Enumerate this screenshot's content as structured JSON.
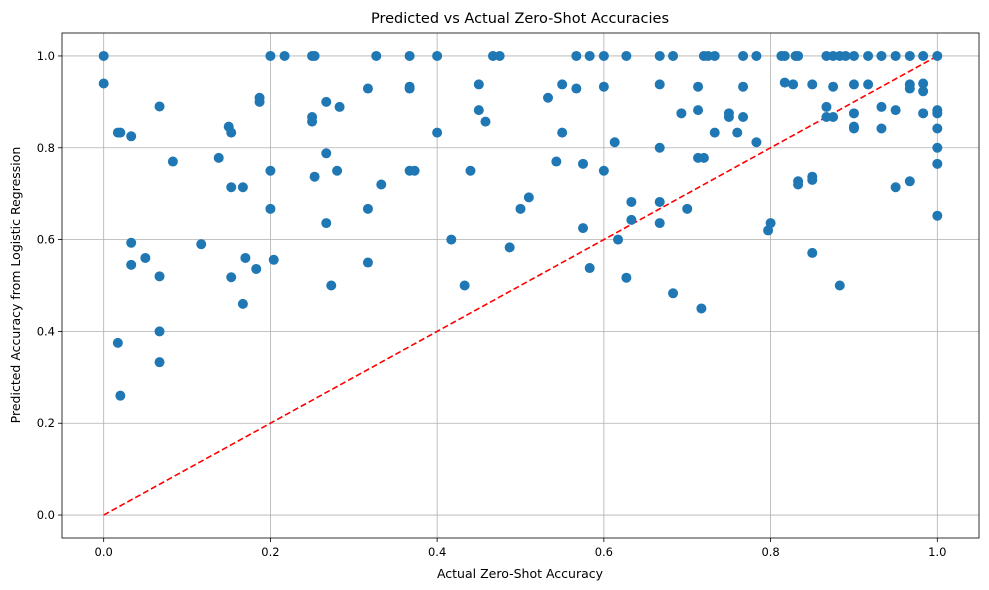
{
  "chart_data": {
    "type": "scatter",
    "title": "Predicted vs Actual Zero-Shot Accuracies",
    "xlabel": "Actual Zero-Shot Accuracy",
    "ylabel": "Predicted Accuracy from Logistic Regression",
    "xlim": [
      -0.05,
      1.05
    ],
    "ylim": [
      -0.05,
      1.05
    ],
    "xticks": [
      "0.0",
      "0.2",
      "0.4",
      "0.6",
      "0.8",
      "1.0"
    ],
    "yticks": [
      "0.0",
      "0.2",
      "0.4",
      "0.6",
      "0.8",
      "1.0"
    ],
    "grid": true,
    "point_color": "#1f77b4",
    "reference_line": {
      "from": [
        0,
        0
      ],
      "to": [
        1,
        1
      ],
      "color": "#ff0000",
      "style": "dashed"
    },
    "points": [
      [
        0.0,
        1.0
      ],
      [
        0.0,
        0.94
      ],
      [
        0.017,
        0.833
      ],
      [
        0.02,
        0.833
      ],
      [
        0.033,
        0.825
      ],
      [
        0.067,
        0.89
      ],
      [
        0.083,
        0.77
      ],
      [
        0.033,
        0.593
      ],
      [
        0.033,
        0.545
      ],
      [
        0.05,
        0.56
      ],
      [
        0.067,
        0.52
      ],
      [
        0.067,
        0.4
      ],
      [
        0.067,
        0.333
      ],
      [
        0.017,
        0.375
      ],
      [
        0.02,
        0.26
      ],
      [
        0.117,
        0.59
      ],
      [
        0.138,
        0.778
      ],
      [
        0.15,
        0.846
      ],
      [
        0.153,
        0.833
      ],
      [
        0.153,
        0.714
      ],
      [
        0.167,
        0.714
      ],
      [
        0.153,
        0.518
      ],
      [
        0.167,
        0.46
      ],
      [
        0.17,
        0.56
      ],
      [
        0.183,
        0.536
      ],
      [
        0.187,
        0.909
      ],
      [
        0.187,
        0.9
      ],
      [
        0.2,
        1.0
      ],
      [
        0.217,
        1.0
      ],
      [
        0.2,
        0.75
      ],
      [
        0.2,
        0.667
      ],
      [
        0.204,
        0.556
      ],
      [
        0.25,
        1.0
      ],
      [
        0.253,
        1.0
      ],
      [
        0.25,
        0.867
      ],
      [
        0.25,
        0.857
      ],
      [
        0.253,
        0.737
      ],
      [
        0.267,
        0.9
      ],
      [
        0.267,
        0.788
      ],
      [
        0.267,
        0.636
      ],
      [
        0.273,
        0.5
      ],
      [
        0.28,
        0.75
      ],
      [
        0.283,
        0.889
      ],
      [
        0.317,
        0.929
      ],
      [
        0.317,
        0.667
      ],
      [
        0.317,
        0.55
      ],
      [
        0.327,
        1.0
      ],
      [
        0.333,
        0.72
      ],
      [
        0.367,
        1.0
      ],
      [
        0.367,
        0.933
      ],
      [
        0.367,
        0.929
      ],
      [
        0.367,
        0.75
      ],
      [
        0.373,
        0.75
      ],
      [
        0.4,
        1.0
      ],
      [
        0.4,
        0.833
      ],
      [
        0.417,
        0.6
      ],
      [
        0.433,
        0.5
      ],
      [
        0.44,
        0.75
      ],
      [
        0.45,
        0.938
      ],
      [
        0.45,
        0.882
      ],
      [
        0.458,
        0.857
      ],
      [
        0.467,
        1.0
      ],
      [
        0.475,
        1.0
      ],
      [
        0.487,
        0.583
      ],
      [
        0.5,
        0.667
      ],
      [
        0.51,
        0.692
      ],
      [
        0.533,
        0.909
      ],
      [
        0.543,
        0.77
      ],
      [
        0.55,
        0.938
      ],
      [
        0.55,
        0.833
      ],
      [
        0.567,
        1.0
      ],
      [
        0.567,
        0.929
      ],
      [
        0.575,
        0.765
      ],
      [
        0.575,
        0.625
      ],
      [
        0.583,
        0.538
      ],
      [
        0.583,
        1.0
      ],
      [
        0.6,
        1.0
      ],
      [
        0.6,
        0.933
      ],
      [
        0.6,
        0.75
      ],
      [
        0.613,
        0.812
      ],
      [
        0.617,
        0.6
      ],
      [
        0.627,
        1.0
      ],
      [
        0.627,
        0.517
      ],
      [
        0.633,
        0.682
      ],
      [
        0.633,
        0.643
      ],
      [
        0.667,
        1.0
      ],
      [
        0.667,
        0.938
      ],
      [
        0.667,
        0.8
      ],
      [
        0.667,
        0.682
      ],
      [
        0.667,
        0.636
      ],
      [
        0.683,
        1.0
      ],
      [
        0.683,
        0.483
      ],
      [
        0.693,
        0.875
      ],
      [
        0.7,
        0.667
      ],
      [
        0.713,
        0.933
      ],
      [
        0.713,
        0.882
      ],
      [
        0.713,
        0.778
      ],
      [
        0.72,
        0.778
      ],
      [
        0.717,
        0.45
      ],
      [
        0.72,
        1.0
      ],
      [
        0.725,
        1.0
      ],
      [
        0.733,
        1.0
      ],
      [
        0.733,
        0.833
      ],
      [
        0.75,
        0.875
      ],
      [
        0.75,
        0.867
      ],
      [
        0.76,
        0.833
      ],
      [
        0.767,
        1.0
      ],
      [
        0.767,
        0.933
      ],
      [
        0.767,
        0.867
      ],
      [
        0.783,
        1.0
      ],
      [
        0.783,
        0.812
      ],
      [
        0.797,
        0.62
      ],
      [
        0.8,
        0.636
      ],
      [
        0.813,
        1.0
      ],
      [
        0.817,
        1.0
      ],
      [
        0.817,
        0.942
      ],
      [
        0.827,
        0.938
      ],
      [
        0.83,
        1.0
      ],
      [
        0.833,
        1.0
      ],
      [
        0.833,
        0.727
      ],
      [
        0.833,
        0.72
      ],
      [
        0.85,
        0.938
      ],
      [
        0.85,
        0.737
      ],
      [
        0.85,
        0.73
      ],
      [
        0.85,
        0.571
      ],
      [
        0.867,
        1.0
      ],
      [
        0.867,
        0.889
      ],
      [
        0.867,
        0.867
      ],
      [
        0.875,
        1.0
      ],
      [
        0.875,
        0.933
      ],
      [
        0.875,
        0.867
      ],
      [
        0.883,
        1.0
      ],
      [
        0.883,
        0.5
      ],
      [
        0.89,
        1.0
      ],
      [
        0.9,
        1.0
      ],
      [
        0.9,
        0.938
      ],
      [
        0.9,
        0.875
      ],
      [
        0.9,
        0.846
      ],
      [
        0.9,
        0.842
      ],
      [
        0.917,
        1.0
      ],
      [
        0.917,
        0.938
      ],
      [
        0.933,
        1.0
      ],
      [
        0.933,
        0.889
      ],
      [
        0.933,
        0.842
      ],
      [
        0.95,
        1.0
      ],
      [
        0.95,
        0.882
      ],
      [
        0.95,
        0.714
      ],
      [
        0.967,
        1.0
      ],
      [
        0.967,
        0.938
      ],
      [
        0.967,
        0.929
      ],
      [
        0.967,
        0.727
      ],
      [
        0.983,
        1.0
      ],
      [
        0.983,
        0.94
      ],
      [
        0.983,
        0.923
      ],
      [
        0.983,
        0.875
      ],
      [
        1.0,
        1.0
      ],
      [
        1.0,
        0.882
      ],
      [
        1.0,
        0.875
      ],
      [
        1.0,
        0.842
      ],
      [
        1.0,
        0.8
      ],
      [
        1.0,
        0.765
      ],
      [
        1.0,
        0.652
      ]
    ]
  }
}
